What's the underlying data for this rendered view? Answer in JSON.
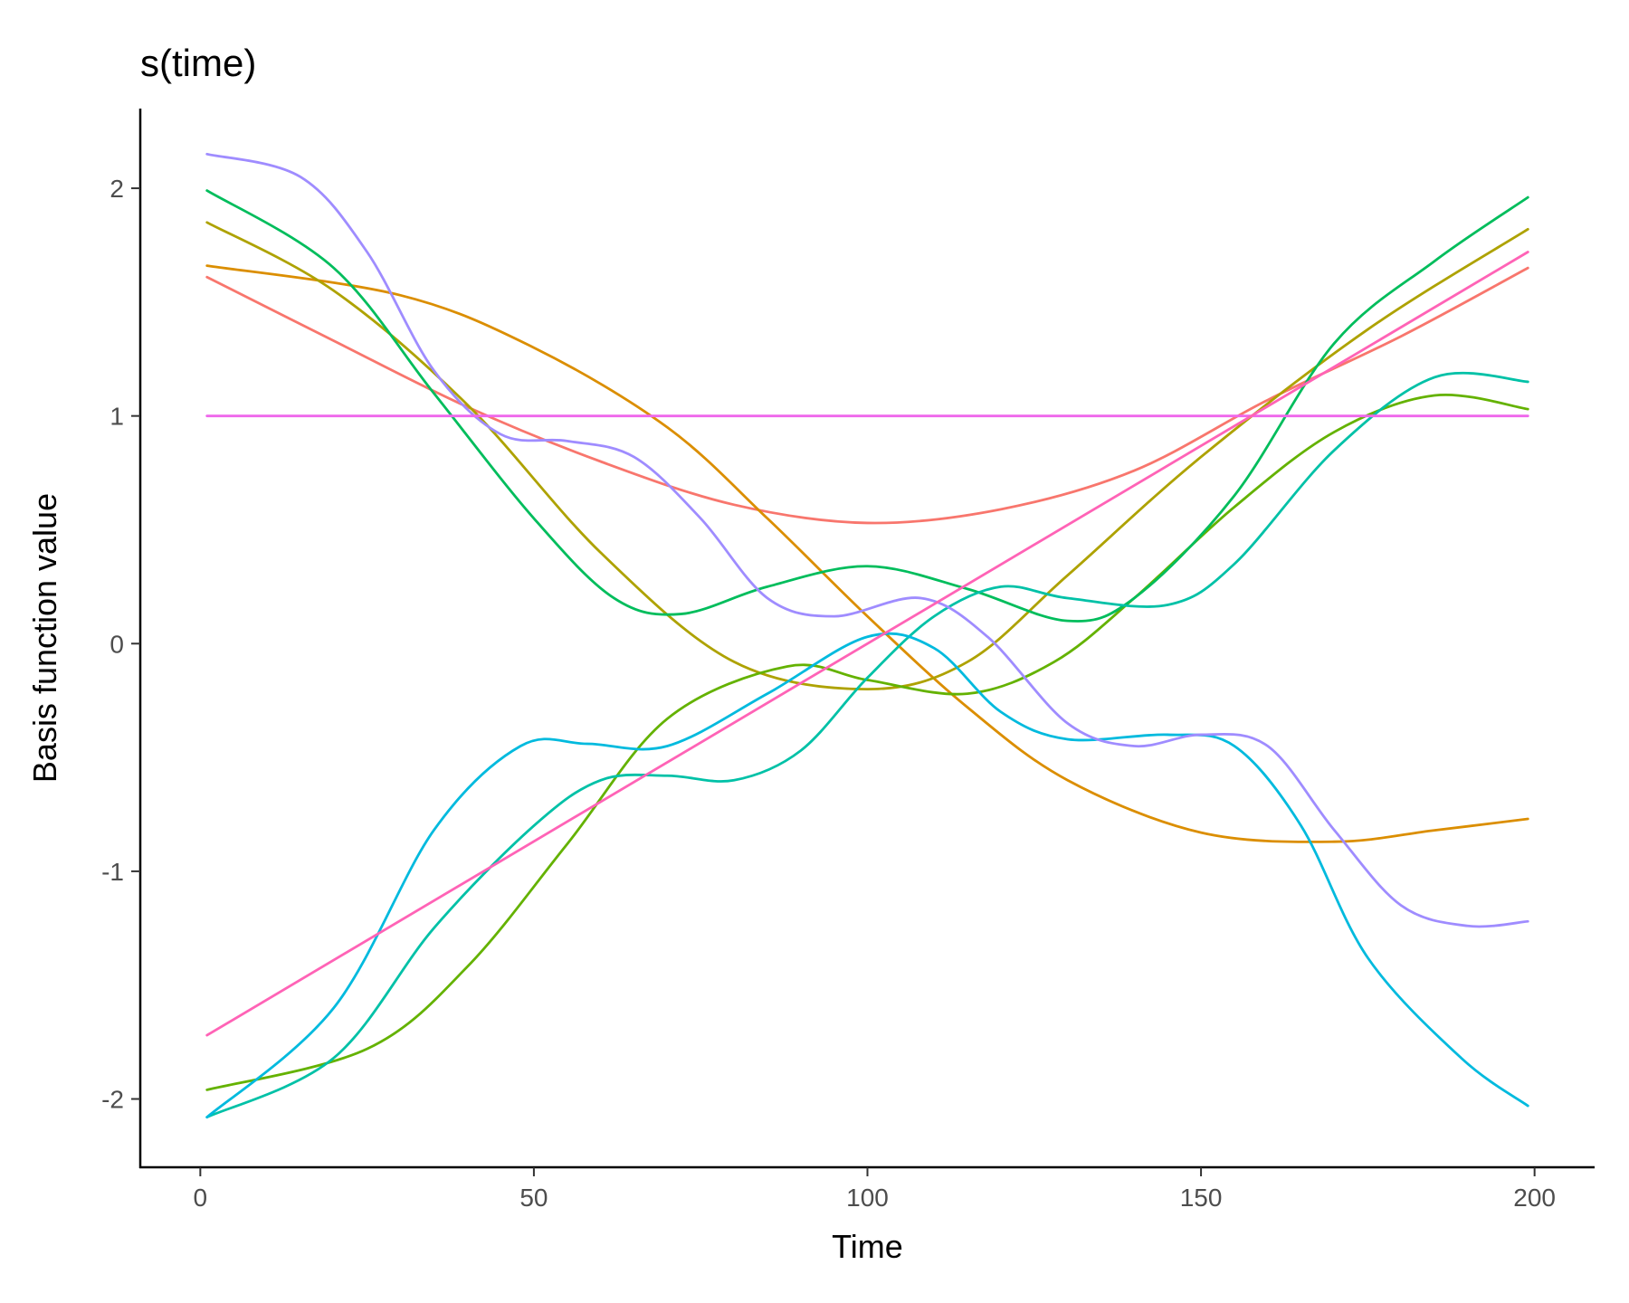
{
  "chart_data": {
    "type": "line",
    "title": "s(time)",
    "xlabel": "Time",
    "ylabel": "Basis function value",
    "xlim": [
      -9,
      209
    ],
    "ylim": [
      -2.3,
      2.35
    ],
    "xticks": [
      0,
      50,
      100,
      150,
      200
    ],
    "xtick_labels": [
      "0",
      "50",
      "100",
      "150",
      "200"
    ],
    "yticks": [
      2,
      1,
      0,
      -1,
      -2
    ],
    "ytick_labels": [
      "2",
      "1",
      "0",
      "-1",
      "-2"
    ],
    "grid": false,
    "legend": "none",
    "series": [
      {
        "color": "#F8766D",
        "points": [
          [
            1,
            1.61
          ],
          [
            20,
            1.33
          ],
          [
            40,
            1.04
          ],
          [
            60,
            0.8
          ],
          [
            80,
            0.61
          ],
          [
            100,
            0.53
          ],
          [
            120,
            0.59
          ],
          [
            140,
            0.76
          ],
          [
            160,
            1.07
          ],
          [
            180,
            1.35
          ],
          [
            199,
            1.65
          ]
        ]
      },
      {
        "color": "#DB8E00",
        "points": [
          [
            1,
            1.66
          ],
          [
            30,
            1.53
          ],
          [
            50,
            1.3
          ],
          [
            70,
            0.95
          ],
          [
            85,
            0.55
          ],
          [
            100,
            0.12
          ],
          [
            115,
            -0.28
          ],
          [
            130,
            -0.6
          ],
          [
            150,
            -0.83
          ],
          [
            170,
            -0.87
          ],
          [
            185,
            -0.82
          ],
          [
            199,
            -0.77
          ]
        ]
      },
      {
        "color": "#AEA200",
        "points": [
          [
            1,
            1.85
          ],
          [
            20,
            1.55
          ],
          [
            40,
            1.05
          ],
          [
            60,
            0.4
          ],
          [
            80,
            -0.08
          ],
          [
            100,
            -0.2
          ],
          [
            115,
            -0.08
          ],
          [
            130,
            0.3
          ],
          [
            150,
            0.82
          ],
          [
            175,
            1.38
          ],
          [
            199,
            1.82
          ]
        ]
      },
      {
        "color": "#64B200",
        "points": [
          [
            1,
            -1.96
          ],
          [
            25,
            -1.78
          ],
          [
            40,
            -1.42
          ],
          [
            55,
            -0.88
          ],
          [
            70,
            -0.33
          ],
          [
            88,
            -0.1
          ],
          [
            100,
            -0.16
          ],
          [
            115,
            -0.22
          ],
          [
            128,
            -0.08
          ],
          [
            140,
            0.2
          ],
          [
            155,
            0.6
          ],
          [
            170,
            0.93
          ],
          [
            185,
            1.09
          ],
          [
            199,
            1.03
          ]
        ]
      },
      {
        "color": "#00BD5C",
        "points": [
          [
            1,
            1.99
          ],
          [
            20,
            1.65
          ],
          [
            35,
            1.1
          ],
          [
            50,
            0.55
          ],
          [
            62,
            0.2
          ],
          [
            72,
            0.13
          ],
          [
            85,
            0.25
          ],
          [
            100,
            0.34
          ],
          [
            115,
            0.24
          ],
          [
            130,
            0.1
          ],
          [
            140,
            0.2
          ],
          [
            155,
            0.65
          ],
          [
            170,
            1.32
          ],
          [
            185,
            1.68
          ],
          [
            199,
            1.96
          ]
        ]
      },
      {
        "color": "#00C1A7",
        "points": [
          [
            1,
            -2.08
          ],
          [
            20,
            -1.82
          ],
          [
            35,
            -1.25
          ],
          [
            50,
            -0.8
          ],
          [
            60,
            -0.6
          ],
          [
            70,
            -0.58
          ],
          [
            80,
            -0.6
          ],
          [
            90,
            -0.47
          ],
          [
            100,
            -0.15
          ],
          [
            110,
            0.12
          ],
          [
            120,
            0.25
          ],
          [
            130,
            0.2
          ],
          [
            145,
            0.17
          ],
          [
            155,
            0.35
          ],
          [
            170,
            0.85
          ],
          [
            185,
            1.17
          ],
          [
            199,
            1.15
          ]
        ]
      },
      {
        "color": "#00BADE",
        "points": [
          [
            1,
            -2.08
          ],
          [
            20,
            -1.6
          ],
          [
            35,
            -0.82
          ],
          [
            48,
            -0.45
          ],
          [
            58,
            -0.44
          ],
          [
            70,
            -0.45
          ],
          [
            85,
            -0.22
          ],
          [
            100,
            0.03
          ],
          [
            110,
            -0.02
          ],
          [
            120,
            -0.3
          ],
          [
            130,
            -0.42
          ],
          [
            145,
            -0.4
          ],
          [
            155,
            -0.45
          ],
          [
            165,
            -0.8
          ],
          [
            175,
            -1.38
          ],
          [
            189,
            -1.82
          ],
          [
            199,
            -2.03
          ]
        ]
      },
      {
        "color": "#9F8CFF",
        "points": [
          [
            1,
            2.15
          ],
          [
            15,
            2.05
          ],
          [
            25,
            1.72
          ],
          [
            35,
            1.2
          ],
          [
            45,
            0.92
          ],
          [
            55,
            0.89
          ],
          [
            65,
            0.82
          ],
          [
            75,
            0.55
          ],
          [
            85,
            0.2
          ],
          [
            95,
            0.12
          ],
          [
            108,
            0.2
          ],
          [
            118,
            0.03
          ],
          [
            130,
            -0.35
          ],
          [
            140,
            -0.45
          ],
          [
            150,
            -0.4
          ],
          [
            160,
            -0.45
          ],
          [
            170,
            -0.82
          ],
          [
            180,
            -1.15
          ],
          [
            190,
            -1.24
          ],
          [
            199,
            -1.22
          ]
        ]
      },
      {
        "color": "#EF67EB",
        "points": [
          [
            1,
            1
          ],
          [
            199,
            1
          ]
        ]
      },
      {
        "color": "#FF63B6",
        "points": [
          [
            1,
            -1.72
          ],
          [
            199,
            1.72
          ]
        ]
      }
    ]
  }
}
